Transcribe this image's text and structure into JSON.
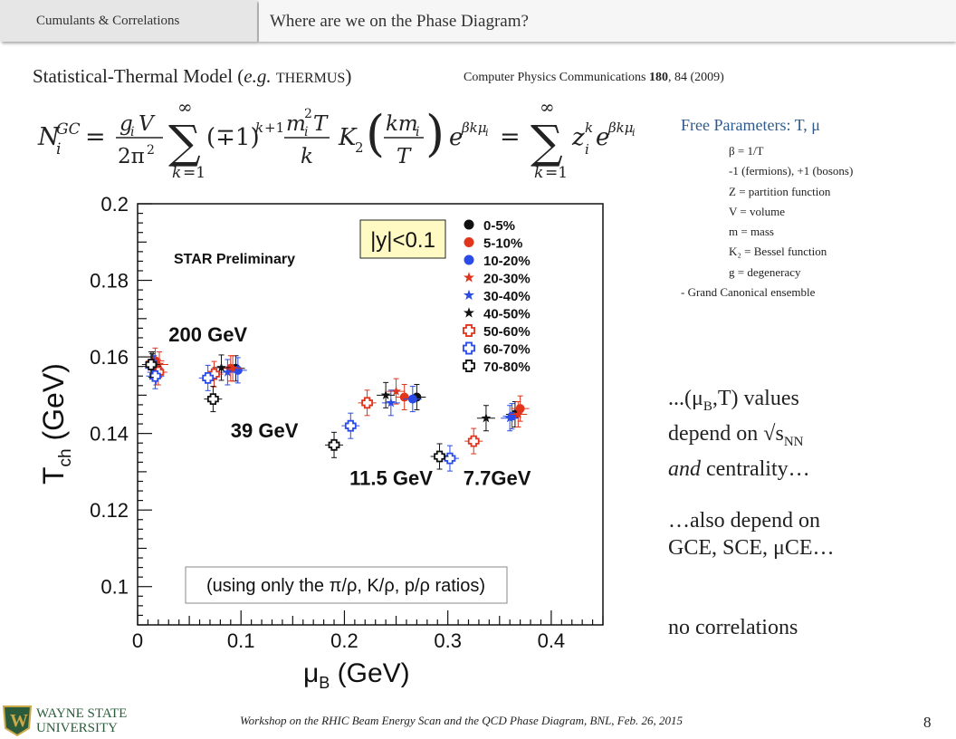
{
  "header": {
    "section": "Cumulants & Correlations",
    "title": "Where are we on the Phase Diagram?"
  },
  "model": {
    "title_prefix": "Statistical-Thermal Model (",
    "title_eg": "e.g.",
    "title_name": "THERMUS",
    "title_suffix": ")",
    "citation_prefix": "Computer Physics Communications ",
    "citation_volume": "180",
    "citation_suffix": ", 84 (2009)"
  },
  "parameters": {
    "heading": "Free Parameters: T, μ",
    "items": [
      "β = 1/T",
      "-1 (fermions), +1 (bosons)",
      "Z = partition function",
      "V = volume",
      "m = mass",
      "K₂ = Bessel function",
      "g = degeneracy"
    ],
    "footer": "- Grand Canonical ensemble"
  },
  "notes": {
    "values_line1": "...(μ",
    "values_sub1": "B",
    "values_line1b": ",T) values",
    "values_line2a": "depend on √s",
    "values_sub2": "NN",
    "values_line3a": "and",
    "values_line3b": " centrality…",
    "also1": "…also depend on",
    "also2": "GCE, SCE, μCE…",
    "nocorr": "no correlations"
  },
  "footer": {
    "logo_line1": "WAYNE STATE",
    "logo_line2": "UNIVERSITY",
    "text": "Workshop on the RHIC Beam Energy Scan and the QCD Phase Diagram, BNL, Feb. 26, 2015",
    "page": "8"
  },
  "colors": {
    "red": "#e0341c",
    "blue": "#2a4be8",
    "black": "#111111",
    "params": "#2f5b8c"
  },
  "chart_data": {
    "type": "scatter",
    "xlabel": "μB (GeV)",
    "ylabel": "Tch (GeV)",
    "xlim": [
      0,
      0.45
    ],
    "ylim": [
      0.09,
      0.2
    ],
    "xticks": [
      "0",
      "0.1",
      "0.2",
      "0.3",
      "0.4"
    ],
    "yticks": [
      "0.1",
      "0.12",
      "0.14",
      "0.16",
      "0.18",
      "0.2"
    ],
    "watermark": "STAR Preliminary",
    "rapidity_box": "|y|<0.1",
    "ratio_note": "(using only the π/ρ, K/ρ, p/ρ ratios)",
    "energy_labels": [
      {
        "text": "200 GeV",
        "x": 0.03,
        "y": 0.164
      },
      {
        "text": "39 GeV",
        "x": 0.09,
        "y": 0.139
      },
      {
        "text": "11.5 GeV",
        "x": 0.205,
        "y": 0.1265
      },
      {
        "text": "7.7GeV",
        "x": 0.315,
        "y": 0.1265
      }
    ],
    "legend": [
      {
        "label": "0-5%",
        "color": "#111111",
        "marker": "circle"
      },
      {
        "label": "5-10%",
        "color": "#e0341c",
        "marker": "circle"
      },
      {
        "label": "10-20%",
        "color": "#2a4be8",
        "marker": "circle"
      },
      {
        "label": "20-30%",
        "color": "#e0341c",
        "marker": "star"
      },
      {
        "label": "30-40%",
        "color": "#2a4be8",
        "marker": "star"
      },
      {
        "label": "40-50%",
        "color": "#111111",
        "marker": "star"
      },
      {
        "label": "50-60%",
        "color": "#e0341c",
        "marker": "cross"
      },
      {
        "label": "60-70%",
        "color": "#2a4be8",
        "marker": "cross"
      },
      {
        "label": "70-80%",
        "color": "#111111",
        "marker": "cross"
      }
    ],
    "points": [
      {
        "x": 0.015,
        "y": 0.158,
        "c": 0
      },
      {
        "x": 0.017,
        "y": 0.159,
        "c": 1
      },
      {
        "x": 0.016,
        "y": 0.157,
        "c": 2
      },
      {
        "x": 0.021,
        "y": 0.158,
        "c": 3
      },
      {
        "x": 0.018,
        "y": 0.156,
        "c": 4
      },
      {
        "x": 0.014,
        "y": 0.1575,
        "c": 5
      },
      {
        "x": 0.02,
        "y": 0.156,
        "c": 6
      },
      {
        "x": 0.017,
        "y": 0.155,
        "c": 7
      },
      {
        "x": 0.013,
        "y": 0.158,
        "c": 8
      },
      {
        "x": 0.095,
        "y": 0.157,
        "c": 0
      },
      {
        "x": 0.09,
        "y": 0.157,
        "c": 1
      },
      {
        "x": 0.097,
        "y": 0.1565,
        "c": 2
      },
      {
        "x": 0.092,
        "y": 0.157,
        "c": 3
      },
      {
        "x": 0.087,
        "y": 0.156,
        "c": 4
      },
      {
        "x": 0.081,
        "y": 0.1572,
        "c": 5
      },
      {
        "x": 0.074,
        "y": 0.1555,
        "c": 6
      },
      {
        "x": 0.068,
        "y": 0.1545,
        "c": 7
      },
      {
        "x": 0.073,
        "y": 0.149,
        "c": 8
      },
      {
        "x": 0.27,
        "y": 0.1495,
        "c": 0
      },
      {
        "x": 0.258,
        "y": 0.1495,
        "c": 1
      },
      {
        "x": 0.266,
        "y": 0.149,
        "c": 2
      },
      {
        "x": 0.25,
        "y": 0.151,
        "c": 3
      },
      {
        "x": 0.245,
        "y": 0.148,
        "c": 4
      },
      {
        "x": 0.24,
        "y": 0.15,
        "c": 5
      },
      {
        "x": 0.222,
        "y": 0.148,
        "c": 6
      },
      {
        "x": 0.206,
        "y": 0.142,
        "c": 7
      },
      {
        "x": 0.19,
        "y": 0.137,
        "c": 8
      },
      {
        "x": 0.365,
        "y": 0.145,
        "c": 0
      },
      {
        "x": 0.37,
        "y": 0.1465,
        "c": 1
      },
      {
        "x": 0.362,
        "y": 0.1445,
        "c": 2
      },
      {
        "x": 0.368,
        "y": 0.145,
        "c": 3
      },
      {
        "x": 0.36,
        "y": 0.144,
        "c": 4
      },
      {
        "x": 0.337,
        "y": 0.144,
        "c": 5
      },
      {
        "x": 0.325,
        "y": 0.138,
        "c": 6
      },
      {
        "x": 0.302,
        "y": 0.1335,
        "c": 7
      },
      {
        "x": 0.292,
        "y": 0.134,
        "c": 8
      }
    ]
  }
}
